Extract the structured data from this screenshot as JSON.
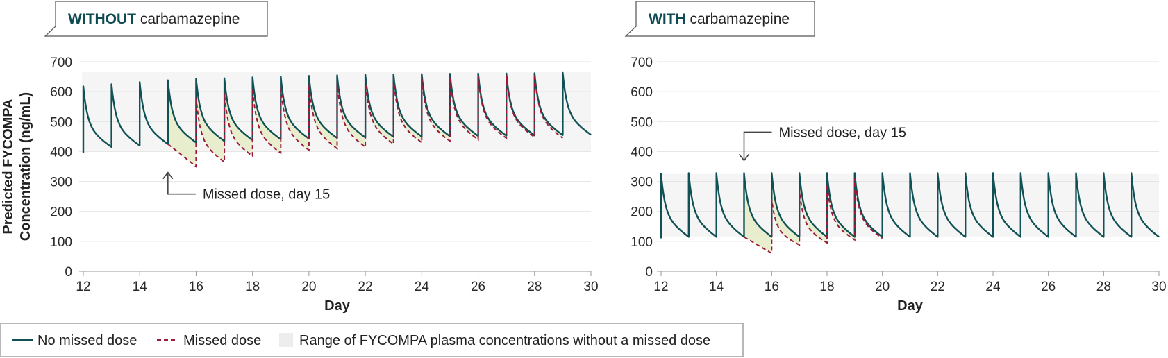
{
  "colors": {
    "no_missed": "#0f5155",
    "missed": "#9b1b3a",
    "band": "#f5f5f5",
    "gap_fill": "#e7ecc9",
    "grid": "#e2e2e2"
  },
  "legend": {
    "no_missed": "No missed dose",
    "missed": "Missed dose",
    "range": "Range of FYCOMPA plasma concentrations without a missed dose"
  },
  "ylabel_line1": "Predicted FYCOMPA",
  "ylabel_line2": "Concentration (ng/mL)",
  "chart_data": [
    {
      "type": "line",
      "title_strong": "WITHOUT",
      "title_rest": " carbamazepine",
      "xlabel": "Day",
      "x_ticks": [
        12,
        14,
        16,
        18,
        20,
        22,
        24,
        26,
        28,
        30
      ],
      "y_ticks": [
        0,
        100,
        200,
        300,
        400,
        500,
        600,
        700
      ],
      "xlim": [
        12,
        30
      ],
      "ylim": [
        0,
        700
      ],
      "range_band": [
        400,
        665
      ],
      "annotation": "Missed dose, day 15",
      "series": [
        {
          "name": "No missed dose",
          "first_trough": 395,
          "peaks": [
            618,
            625,
            632,
            638,
            642,
            645,
            648,
            651,
            653,
            655,
            657,
            658,
            659,
            660,
            661,
            661,
            662,
            663
          ],
          "troughs": [
            415,
            420,
            425,
            430,
            435,
            438,
            441,
            443,
            445,
            447,
            449,
            450,
            451,
            452,
            453,
            454,
            455,
            456
          ]
        },
        {
          "name": "Missed dose",
          "points": [
            {
              "x": 15,
              "y": 425
            },
            {
              "x": 16,
              "y": 350
            },
            {
              "x": 16,
              "y": 580
            },
            {
              "x": 17,
              "y": 365
            },
            {
              "x": 17,
              "y": 595
            },
            {
              "x": 18,
              "y": 385
            },
            {
              "x": 18,
              "y": 610
            },
            {
              "x": 19,
              "y": 395
            },
            {
              "x": 19,
              "y": 618
            },
            {
              "x": 20,
              "y": 405
            },
            {
              "x": 20,
              "y": 625
            },
            {
              "x": 21,
              "y": 410
            },
            {
              "x": 21,
              "y": 632
            },
            {
              "x": 22,
              "y": 415
            },
            {
              "x": 22,
              "y": 637
            },
            {
              "x": 23,
              "y": 425
            },
            {
              "x": 23,
              "y": 642
            },
            {
              "x": 24,
              "y": 430
            },
            {
              "x": 24,
              "y": 646
            },
            {
              "x": 25,
              "y": 435
            },
            {
              "x": 25,
              "y": 649
            },
            {
              "x": 26,
              "y": 440
            },
            {
              "x": 26,
              "y": 652
            },
            {
              "x": 27,
              "y": 445
            },
            {
              "x": 27,
              "y": 655
            },
            {
              "x": 28,
              "y": 448
            },
            {
              "x": 28,
              "y": 658
            },
            {
              "x": 29,
              "y": 445
            }
          ]
        }
      ]
    },
    {
      "type": "line",
      "title_strong": "WITH",
      "title_rest": " carbamazepine",
      "xlabel": "Day",
      "x_ticks": [
        12,
        14,
        16,
        18,
        20,
        22,
        24,
        26,
        28,
        30
      ],
      "y_ticks": [
        0,
        100,
        200,
        300,
        400,
        500,
        600,
        700
      ],
      "xlim": [
        12,
        30
      ],
      "ylim": [
        0,
        700
      ],
      "range_band": [
        115,
        325
      ],
      "annotation": "Missed dose, day 15",
      "series": [
        {
          "name": "No missed dose",
          "first_trough": 110,
          "peaks": [
            325,
            328,
            328,
            328,
            328,
            328,
            328,
            328,
            328,
            328,
            328,
            328,
            328,
            328,
            328,
            328,
            328,
            328
          ],
          "troughs": [
            115,
            115,
            115,
            115,
            115,
            115,
            115,
            115,
            115,
            115,
            115,
            115,
            115,
            115,
            115,
            115,
            115,
            115
          ]
        },
        {
          "name": "Missed dose",
          "points": [
            {
              "x": 15,
              "y": 115
            },
            {
              "x": 16,
              "y": 60
            },
            {
              "x": 16,
              "y": 240
            },
            {
              "x": 17,
              "y": 88
            },
            {
              "x": 17,
              "y": 270
            },
            {
              "x": 18,
              "y": 95
            },
            {
              "x": 18,
              "y": 292
            },
            {
              "x": 19,
              "y": 105
            },
            {
              "x": 19,
              "y": 310
            },
            {
              "x": 20,
              "y": 110
            }
          ]
        }
      ]
    }
  ]
}
